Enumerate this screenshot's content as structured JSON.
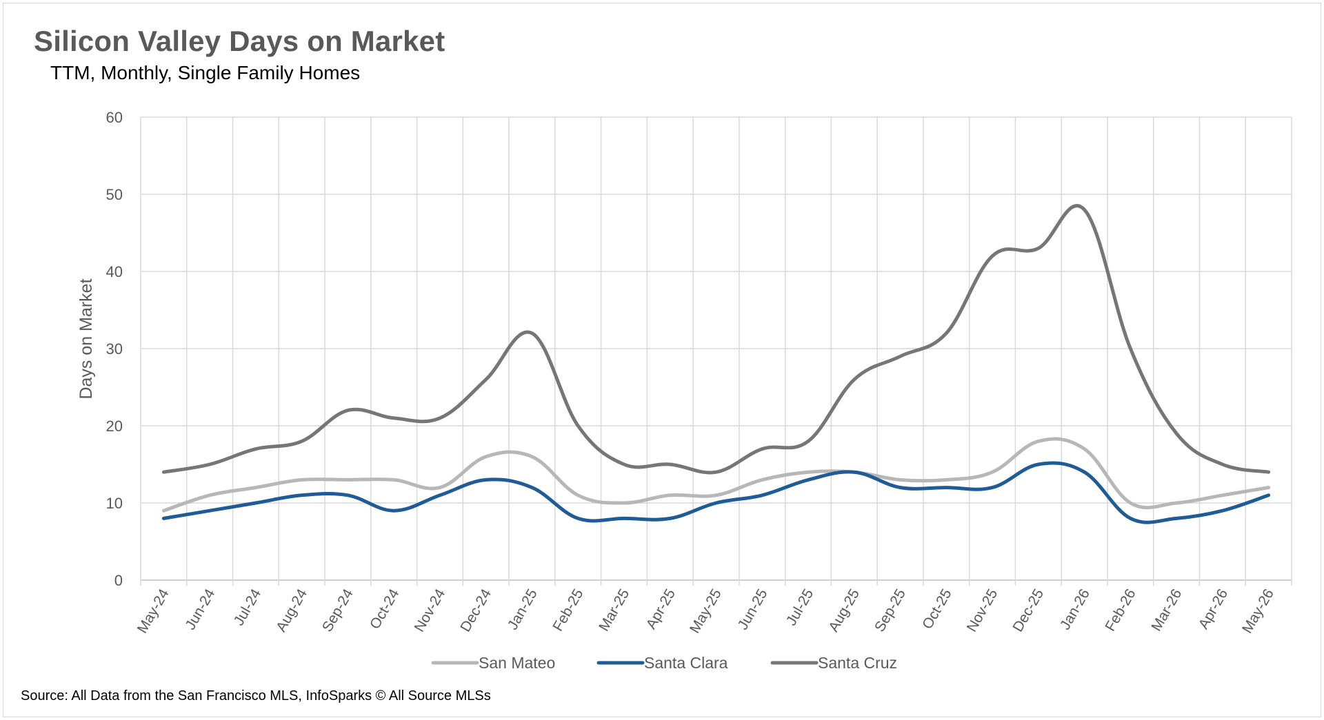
{
  "chart_data": {
    "type": "line",
    "title": "Silicon Valley Days on Market",
    "subtitle": "TTM, Monthly, Single Family Homes",
    "xlabel": "",
    "ylabel": "Days on Market",
    "ylim": [
      0,
      60
    ],
    "yticks": [
      0,
      10,
      20,
      30,
      40,
      50,
      60
    ],
    "grid": true,
    "legend_position": "bottom",
    "categories": [
      "May-24",
      "Jun-24",
      "Jul-24",
      "Aug-24",
      "Sep-24",
      "Oct-24",
      "Nov-24",
      "Dec-24",
      "Jan-25",
      "Feb-25",
      "Mar-25",
      "Apr-25",
      "May-25",
      "Jun-25",
      "Jul-25",
      "Aug-25",
      "Sep-25",
      "Oct-25",
      "Nov-25",
      "Dec-25",
      "Jan-26",
      "Feb-26",
      "Mar-26",
      "Apr-26",
      "May-26"
    ],
    "series": [
      {
        "name": "San Mateo",
        "color": "#b7b7b7",
        "values": [
          9,
          11,
          12,
          13,
          13,
          13,
          12,
          16,
          16,
          11,
          10,
          11,
          11,
          13,
          14,
          14,
          13,
          13,
          14,
          18,
          17,
          10,
          10,
          11,
          12
        ]
      },
      {
        "name": "Santa Clara",
        "color": "#1f5b96",
        "values": [
          8,
          9,
          10,
          11,
          11,
          9,
          11,
          13,
          12,
          8,
          8,
          8,
          10,
          11,
          13,
          14,
          12,
          12,
          12,
          15,
          14,
          8,
          8,
          9,
          11
        ]
      },
      {
        "name": "Santa Cruz",
        "color": "#767676",
        "values": [
          14,
          15,
          17,
          18,
          22,
          21,
          21,
          26,
          32,
          20,
          15,
          15,
          14,
          17,
          18,
          26,
          29,
          32,
          42,
          43,
          48,
          30,
          19,
          15,
          14
        ]
      }
    ]
  },
  "footer": {
    "source": "Source: All Data from the San Francisco MLS, InfoSparks © All Source MLSs"
  }
}
